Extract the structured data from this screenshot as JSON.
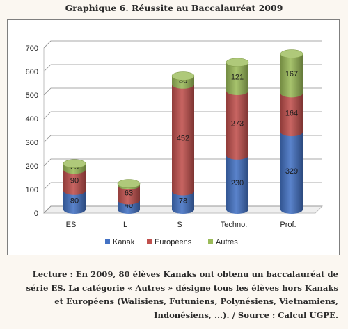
{
  "title": "Graphique 6. Réussite au Baccalauréat 2009",
  "caption": "Lecture : En 2009, 80 élèves Kanaks ont obtenu un baccalauréat de série ES. La catégorie « Autres » désigne tous les élèves hors Kanaks et Européens (Walisiens, Futuniens, Polynésiens, Vietnamiens, Indonésiens, ...). / Source : Calcul UGPE.",
  "chart_data": {
    "type": "bar",
    "stacked": true,
    "categories": [
      "ES",
      "L",
      "S",
      "Techno.",
      "Prof."
    ],
    "series": [
      {
        "name": "Kanak",
        "values": [
          80,
          40,
          78,
          230,
          329
        ],
        "color": "#4472c4"
      },
      {
        "name": "Européens",
        "values": [
          90,
          63,
          452,
          273,
          164
        ],
        "color": "#c0504d"
      },
      {
        "name": "Autres",
        "values": [
          25,
          7,
          36,
          121,
          167
        ],
        "color": "#9bbb59"
      }
    ],
    "ylim": [
      0,
      700
    ],
    "yticks": [
      0,
      100,
      200,
      300,
      400,
      500,
      600,
      700
    ],
    "grid": true,
    "legend_position": "bottom"
  }
}
